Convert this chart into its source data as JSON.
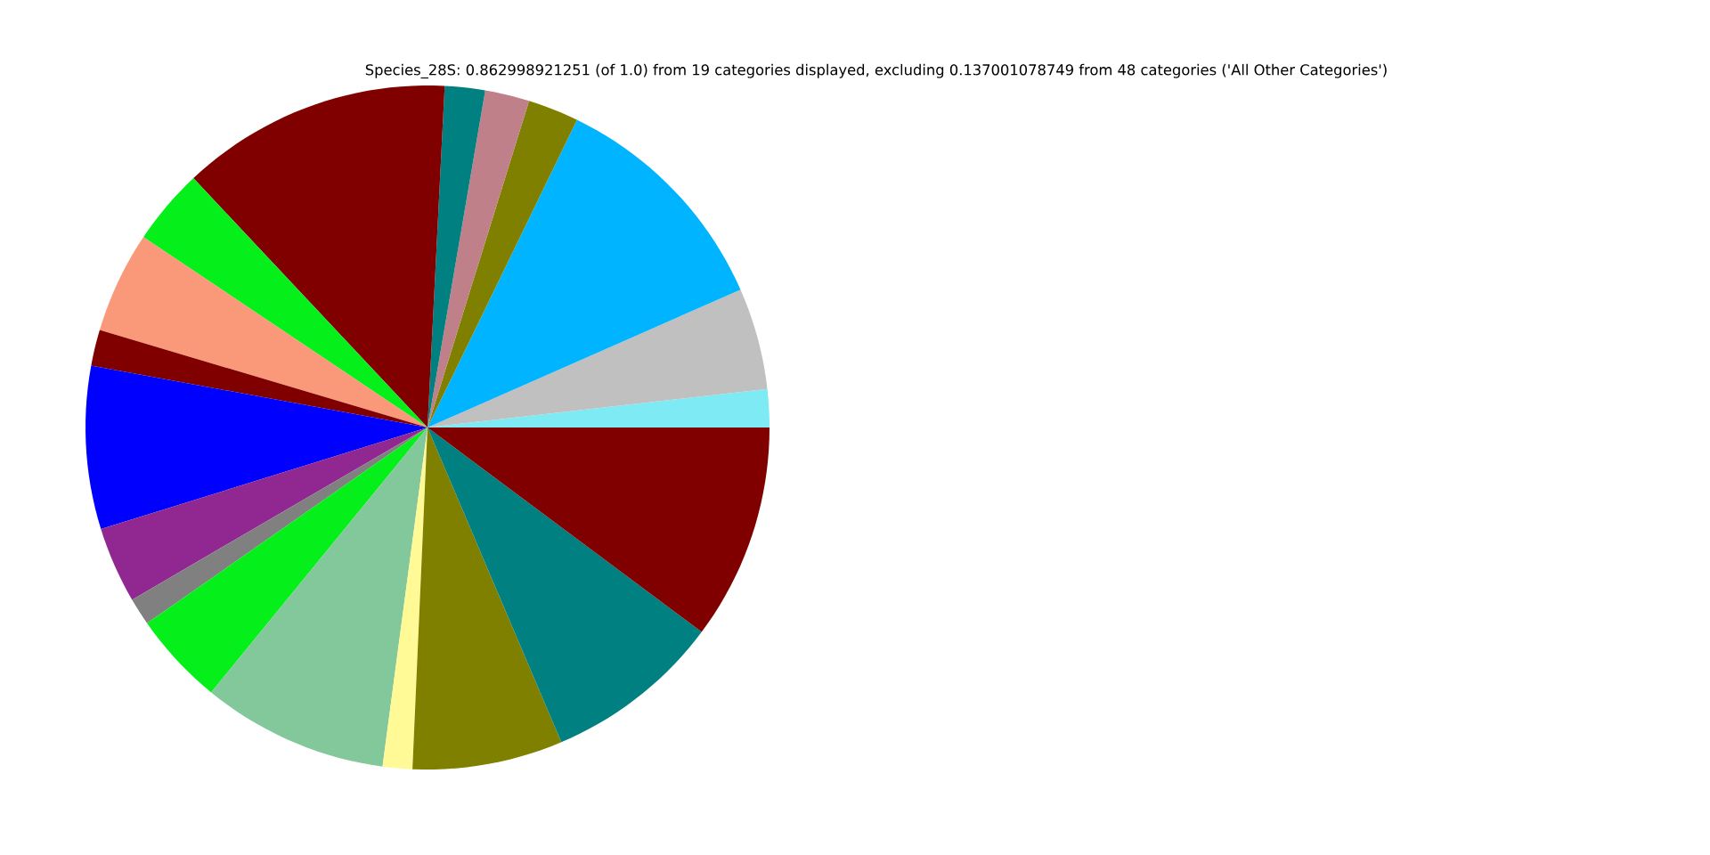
{
  "chart_data": {
    "type": "pie",
    "title": "Species_28S: 0.862998921251 (of 1.0) from 19 categories displayed, excluding 0.137001078749 from 48 categories ('All Other Categories')",
    "categories": [
      null,
      null,
      null,
      null,
      null,
      null,
      null,
      null,
      null,
      null,
      null,
      null,
      null,
      null,
      null,
      null,
      null,
      null,
      null
    ],
    "values": [
      1.8,
      4.8,
      11.2,
      2.4,
      2.1,
      1.9,
      12.8,
      3.6,
      4.8,
      1.7,
      7.7,
      3.6,
      1.3,
      4.4,
      8.8,
      1.4,
      7.1,
      8.4,
      10.2
    ],
    "colors": [
      "#7eebf4",
      "#c0c0c0",
      "#00b4ff",
      "#808000",
      "#c0808a",
      "#008080",
      "#800000",
      "#05f01a",
      "#f9997a",
      "#800000",
      "#0000ff",
      "#912891",
      "#808080",
      "#05f01a",
      "#82c89a",
      "#fffa96",
      "#808000",
      "#008080",
      "#800000"
    ]
  }
}
